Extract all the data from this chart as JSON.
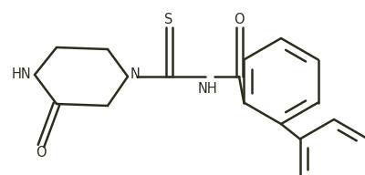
{
  "background_color": "#ffffff",
  "line_color": "#2d2d1e",
  "lw": 1.8,
  "font_size": 10.5,
  "figsize": [
    4.0,
    1.92
  ],
  "dpi": 100,
  "xlim": [
    0,
    400
  ],
  "ylim": [
    0,
    192
  ]
}
